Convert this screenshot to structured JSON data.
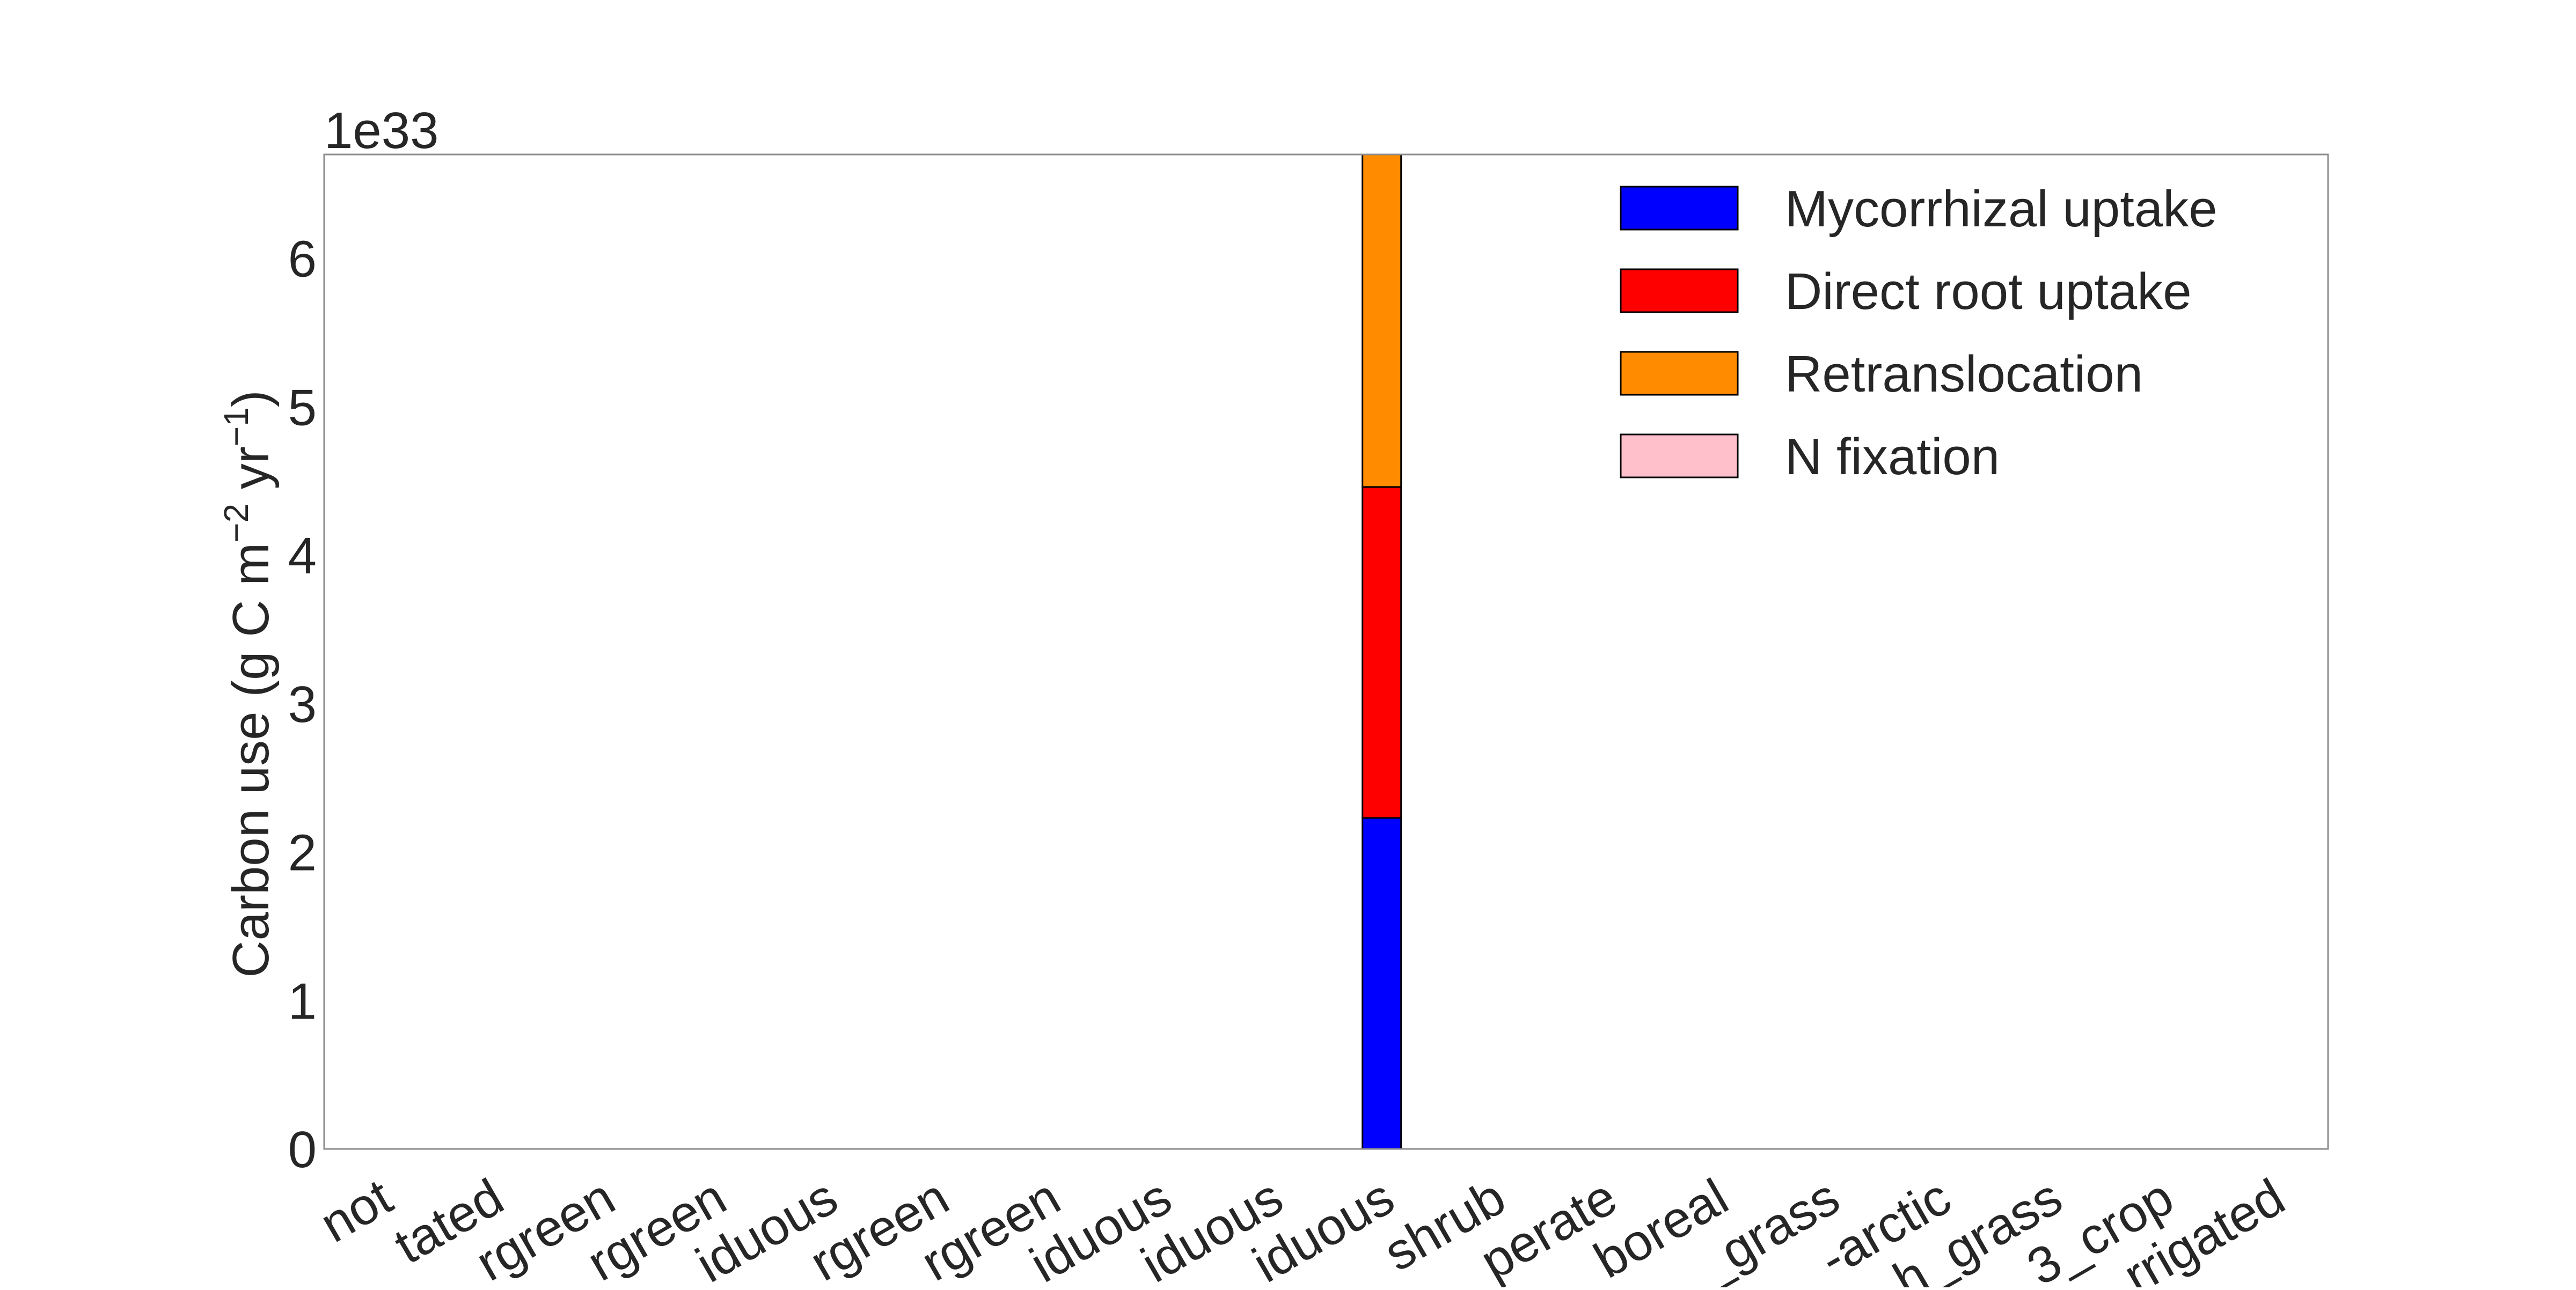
{
  "chart_data": {
    "type": "bar",
    "stacked": true,
    "title": "",
    "xlabel": "",
    "ylabel": "Carbon use (g C m",
    "ylabel_sup1": "−2",
    "ylabel_mid": " yr",
    "ylabel_sup2": "−1",
    "ylabel_end": ")",
    "y_offset_label": "1e33",
    "ylim": [
      0,
      6.7
    ],
    "yticks": [
      0,
      1,
      2,
      3,
      4,
      5,
      6
    ],
    "legend_position": "top-right",
    "grid": false,
    "categories": [
      "not",
      "tated",
      "rgreen",
      "rgreen",
      "iduous",
      "rgreen",
      "rgreen",
      "iduous",
      "iduous",
      "iduous",
      "shrub",
      "perate",
      "boreal",
      "_grass",
      "-arctic",
      "h_grass",
      "3_crop",
      "rrigated"
    ],
    "series": [
      {
        "name": "Mycorrhizal uptake",
        "color": "#0000ff",
        "values": [
          0,
          0,
          0,
          0,
          0,
          0,
          0,
          0,
          0,
          2.23,
          0,
          0,
          0,
          0,
          0,
          0,
          0,
          0
        ]
      },
      {
        "name": "Direct root uptake",
        "color": "#ff0000",
        "values": [
          0,
          0,
          0,
          0,
          0,
          0,
          0,
          0,
          0,
          2.23,
          0,
          0,
          0,
          0,
          0,
          0,
          0,
          0
        ]
      },
      {
        "name": "Retranslocation",
        "color": "#ff8c00",
        "values": [
          0,
          0,
          0,
          0,
          0,
          0,
          0,
          0,
          0,
          2.24,
          0,
          0,
          0,
          0,
          0,
          0,
          0,
          0
        ]
      },
      {
        "name": "N fixation",
        "color": "#ffc0cb",
        "values": [
          0,
          0,
          0,
          0,
          0,
          0,
          0,
          0,
          0,
          0,
          0,
          0,
          0,
          0,
          0,
          0,
          0,
          0
        ]
      }
    ]
  }
}
